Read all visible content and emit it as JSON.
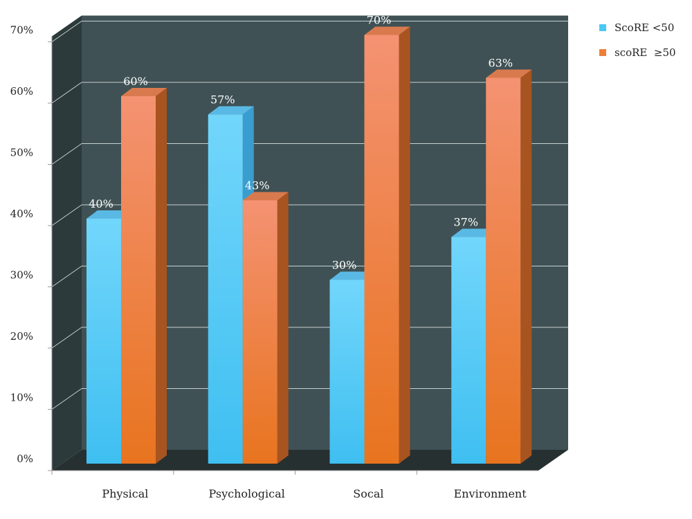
{
  "chart_data": {
    "type": "bar",
    "title": "",
    "xlabel": "",
    "ylabel": "",
    "categories": [
      "Physical",
      "Psychological",
      "Socal",
      "Environment"
    ],
    "series": [
      {
        "name": "ScoRE <50",
        "values": [
          40,
          57,
          30,
          37
        ],
        "labels": [
          "40%",
          "57%",
          "30%",
          "37%"
        ]
      },
      {
        "name": "scoRE  ≥50",
        "values": [
          60,
          43,
          70,
          63
        ],
        "labels": [
          "60%",
          "43%",
          "70%",
          "63%"
        ]
      }
    ],
    "ylim": [
      0,
      70
    ],
    "y_ticks": [
      "0%",
      "10%",
      "20%",
      "30%",
      "40%",
      "50%",
      "60%",
      "70%"
    ],
    "grid": true,
    "legend_position": "top-right",
    "style": "3d",
    "colors": {
      "series_0": "#4cc8f4",
      "series_1": "#ee7f3a",
      "wall": "#3f5154",
      "side_wall": "#2c3a3b",
      "floor": "#263030",
      "gridline": "#c8d0d0"
    }
  }
}
